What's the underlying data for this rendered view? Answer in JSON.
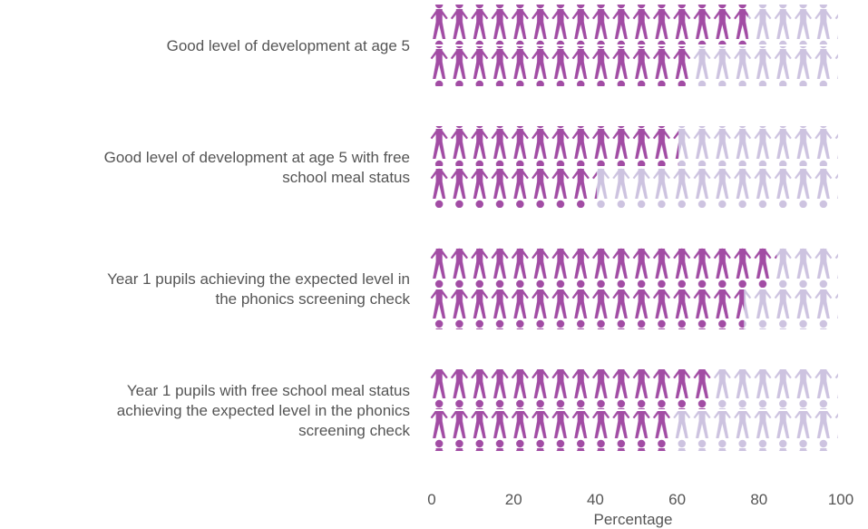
{
  "chart_data": {
    "type": "bar",
    "orientation": "horizontal",
    "style": "pictogram",
    "categories": [
      [
        "Good level of development at age 5"
      ],
      [
        "Good level of development at age 5 with free",
        "school meal status"
      ],
      [
        "Year 1 pupils achieving the expected level in",
        "the phonics screening check"
      ],
      [
        "Year 1 pupils with free school meal status",
        "achieving the expected level in the phonics",
        "screening check"
      ]
    ],
    "series": [
      {
        "values": [
          78,
          61,
          85,
          69
        ]
      },
      {
        "values": [
          64,
          41,
          77,
          59
        ]
      }
    ],
    "xlabel": "Percentage",
    "xlim": [
      0,
      100
    ],
    "xticks": [
      "0",
      "20",
      "40",
      "60",
      "80",
      "100"
    ],
    "grid": false,
    "legend": "none",
    "colors": {
      "filled": "#a24ca4",
      "empty": "#cdc3e0"
    }
  }
}
